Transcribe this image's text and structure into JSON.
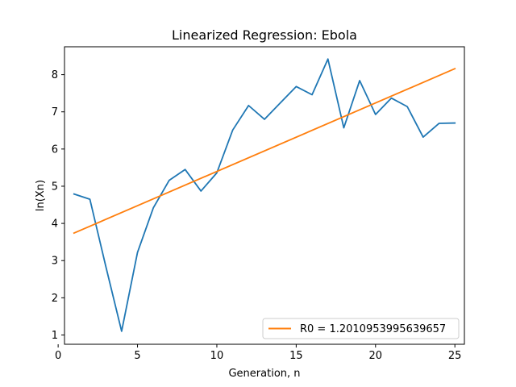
{
  "chart_data": {
    "type": "line",
    "title": "Linearized Regression: Ebola",
    "xlabel": "Generation, n",
    "ylabel": "ln(Xn)",
    "xlim": [
      0.4,
      25.6
    ],
    "ylim": [
      0.75,
      8.75
    ],
    "xticks": [
      0,
      5,
      10,
      15,
      20,
      25
    ],
    "yticks": [
      1,
      2,
      3,
      4,
      5,
      6,
      7,
      8
    ],
    "grid": false,
    "legend_position": "lower right",
    "series": [
      {
        "name": "",
        "color": "#1f77b4",
        "x": [
          1,
          2,
          3,
          4,
          5,
          6,
          7,
          8,
          9,
          10,
          11,
          12,
          13,
          14,
          15,
          16,
          17,
          18,
          19,
          20,
          21,
          22,
          23,
          24,
          25
        ],
        "y": [
          4.79,
          4.65,
          2.85,
          1.1,
          3.22,
          4.42,
          5.16,
          5.45,
          4.87,
          5.36,
          6.51,
          7.17,
          6.8,
          7.24,
          7.68,
          7.46,
          8.42,
          6.57,
          7.84,
          6.93,
          7.37,
          7.14,
          6.32,
          6.69,
          6.7
        ]
      },
      {
        "name": "R0 = 1.2010953995639657",
        "color": "#ff7f0e",
        "x": [
          1,
          25
        ],
        "y": [
          3.74,
          8.16
        ]
      }
    ]
  }
}
